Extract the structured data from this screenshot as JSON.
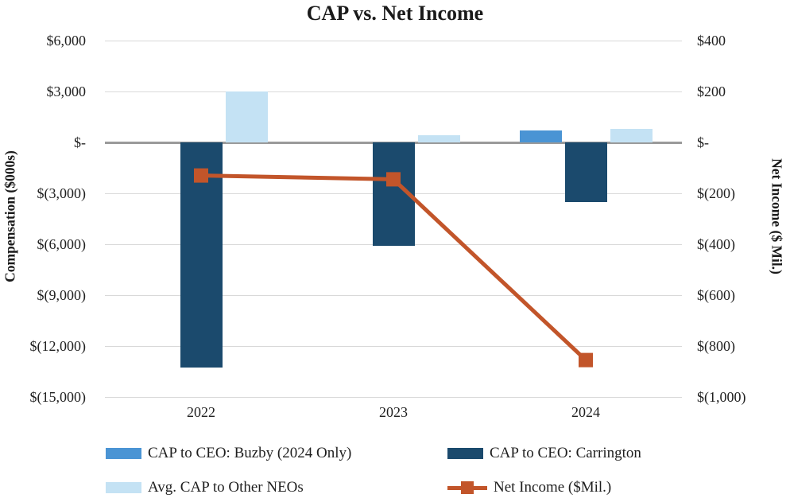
{
  "title": "CAP vs. Net Income",
  "axes": {
    "left": {
      "label": "Compensation ($000s)",
      "ticks": [
        "$6,000",
        "$3,000",
        "$-",
        "$(3,000)",
        "$(6,000)",
        "$(9,000)",
        "$(12,000)",
        "$(15,000)"
      ]
    },
    "right": {
      "label": "Net Income ($ Mil.)",
      "ticks": [
        "$400",
        "$200",
        "$-",
        "$(200)",
        "$(400)",
        "$(600)",
        "$(800)",
        "$(1,000)"
      ]
    },
    "x": {
      "labels": [
        "2022",
        "2023",
        "2024"
      ]
    }
  },
  "legend": [
    {
      "label": "CAP to CEO: Buzby (2024 Only)",
      "swatch": "bar",
      "color": "#4a94d4"
    },
    {
      "label": "CAP to CEO: Carrington",
      "swatch": "bar",
      "color": "#1b4a6d"
    },
    {
      "label": "Avg. CAP to Other NEOs",
      "swatch": "bar",
      "color": "#c4e2f4"
    },
    {
      "label": "Net Income ($Mil.)",
      "swatch": "line",
      "color": "#c2552a"
    }
  ],
  "colors": {
    "buzby_blue": "#4a94d4",
    "carrington_navy": "#1b4a6d",
    "neos_light_blue": "#c4e2f4",
    "net_income_orange": "#c2552a",
    "gridline": "#d9d9d9",
    "zero_line": "#9a9a9a",
    "text": "#1f1f1f"
  },
  "chart_data": {
    "type": "bar",
    "subtype": "combo: grouped bars (left axis) + line with square markers (right axis)",
    "title": "CAP vs. Net Income",
    "categories": [
      "2022",
      "2023",
      "2024"
    ],
    "series": [
      {
        "name": "CAP to CEO: Buzby (2024 Only)",
        "type": "bar",
        "axis": "left",
        "color": "#4a94d4",
        "values": [
          null,
          null,
          700
        ]
      },
      {
        "name": "CAP to CEO: Carrington",
        "type": "bar",
        "axis": "left",
        "color": "#1b4a6d",
        "values": [
          -13250,
          -6100,
          -3500
        ]
      },
      {
        "name": "Avg. CAP to Other NEOs",
        "type": "bar",
        "axis": "left",
        "color": "#c4e2f4",
        "values": [
          3000,
          400,
          800
        ]
      },
      {
        "name": "Net Income ($Mil.)",
        "type": "line",
        "axis": "right",
        "color": "#c2552a",
        "values": [
          -130,
          -145,
          -855
        ]
      }
    ],
    "left_axis": {
      "label": "Compensation ($000s)",
      "min": -15000,
      "max": 6000,
      "step": 3000
    },
    "right_axis": {
      "label": "Net Income ($ Mil.)",
      "min": -1000,
      "max": 400,
      "step": 200
    },
    "grid": true,
    "legend_position": "bottom",
    "values_estimated_from_gridlines": true
  }
}
